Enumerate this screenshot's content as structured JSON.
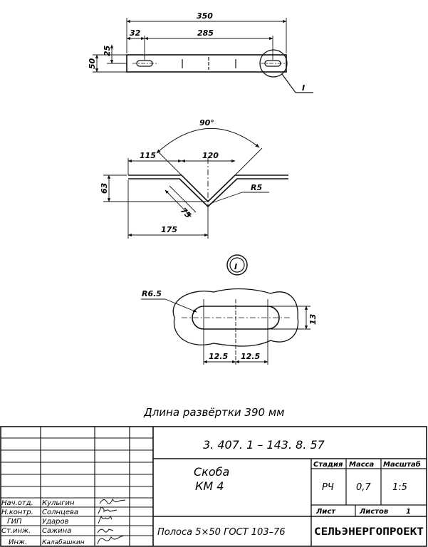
{
  "drawing": {
    "top_view": {
      "dim_total": "350",
      "dim_offset": "32",
      "dim_span": "285",
      "dim_height": "50",
      "dim_small": "25",
      "callout": "I"
    },
    "bend_view": {
      "dim_angle": "90°",
      "dim_left": "115",
      "dim_mid": "120",
      "dim_depth": "63",
      "dim_radius": "R5",
      "dim_diag": "75",
      "dim_half": "175"
    },
    "detail": {
      "label": "I",
      "dim_radius": "R6.5",
      "dim_width": "13",
      "dim_a": "12.5",
      "dim_b": "12.5"
    },
    "development_length": "Длина развёртки 390 мм"
  },
  "title_block": {
    "doc_number": "3. 407. 1 – 143. 8. 57",
    "title_line1": "Скоба",
    "title_line2": "КМ 4",
    "stage_header": "Стадия",
    "mass_header": "Масса",
    "scale_header": "Масштаб",
    "stage_value": "РЧ",
    "mass_value": "0,7",
    "scale_value": "1:5",
    "sheet_label": "Лист",
    "sheets_label": "Листов",
    "sheets_value": "1",
    "material": "Полоса 5×50 ГОСТ 103–76",
    "organization": "СЕЛЬЭНЕРГОПРОЕКТ",
    "roles": [
      {
        "role": "Нач.отд.",
        "name": "Кулыгин"
      },
      {
        "role": "Н.контр.",
        "name": "Солнцева"
      },
      {
        "role": "ГИП",
        "name": "Ударов"
      },
      {
        "role": "Ст.инж.",
        "name": "Сажина"
      },
      {
        "role": "Инж.",
        "name": "Калабашкин"
      }
    ]
  }
}
